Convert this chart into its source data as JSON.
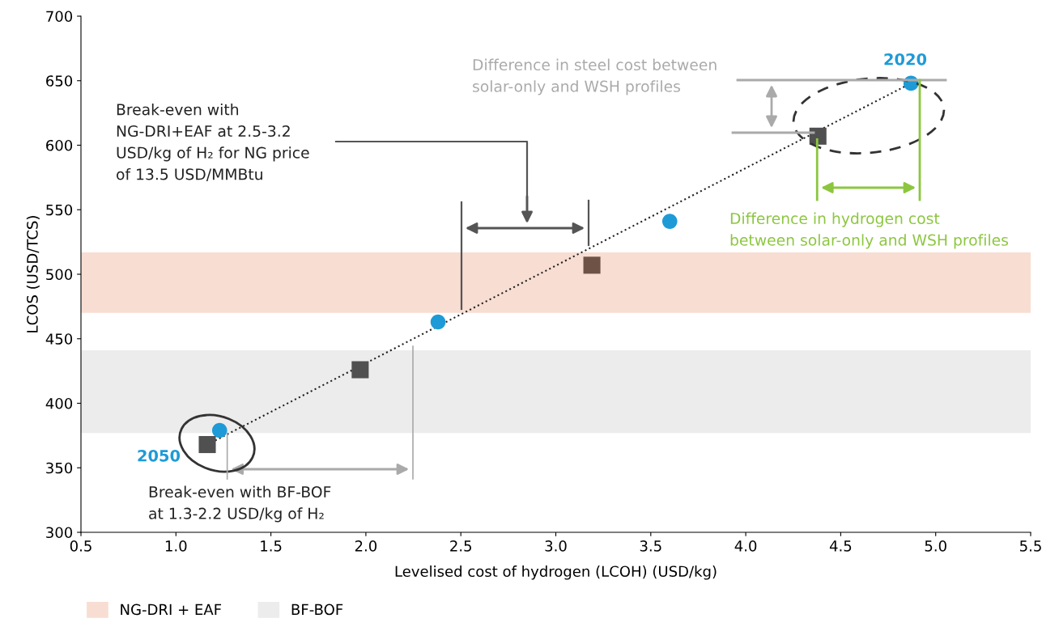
{
  "chart_data": {
    "type": "scatter",
    "xlabel": "Levelised cost of hydrogen (LCOH) (USD/kg)",
    "ylabel": "LCOS (USD/TCS)",
    "xlim": [
      0.5,
      5.5
    ],
    "xticks": [
      {
        "value": 0.5,
        "label": "0.5"
      },
      {
        "value": 1.0,
        "label": "1.0"
      },
      {
        "value": 1.5,
        "label": "1.5"
      },
      {
        "value": 2.0,
        "label": "2.0"
      },
      {
        "value": 2.5,
        "label": "2.5"
      },
      {
        "value": 3.0,
        "label": "3.0"
      },
      {
        "value": 3.5,
        "label": "3.5"
      },
      {
        "value": 4.0,
        "label": "4.0"
      },
      {
        "value": 4.5,
        "label": "4.5"
      },
      {
        "value": 5.0,
        "label": "5.0"
      },
      {
        "value": 5.5,
        "label": "5.5"
      }
    ],
    "ylim": [
      300,
      700
    ],
    "yticks": [
      300,
      350,
      400,
      450,
      500,
      550,
      600,
      650,
      700
    ],
    "grid": false,
    "legend": "bottom left",
    "series": [
      {
        "type": "line",
        "color": "#222222",
        "line_style": "dotted",
        "marker": "none",
        "x": [
          1.165,
          4.87
        ],
        "values": [
          368,
          648
        ]
      },
      {
        "color": "#1e9bd7",
        "marker": "circle",
        "x": [
          1.23,
          2.38,
          3.6,
          4.87
        ],
        "values": [
          379,
          463,
          541,
          648
        ]
      },
      {
        "color": "#505050",
        "marker": "square",
        "colors": [
          "#505050",
          "#505050",
          "#6e5246",
          "#505050"
        ],
        "x": [
          1.165,
          1.97,
          3.19,
          4.38
        ],
        "values": [
          368,
          426,
          507,
          607
        ]
      }
    ],
    "bands": [
      {
        "axis": "y",
        "from": 470,
        "to": 517,
        "label": "NG-DRI + EAF",
        "color": "#f8ddd3"
      },
      {
        "axis": "y",
        "from": 377,
        "to": 441,
        "label": "BF-BOF",
        "color": "#ececec"
      }
    ],
    "annotations": [
      "2020",
      "2050",
      "Difference in steel cost between\nsolar-only and WSH profiles",
      "Break-even with\nNG-DRI+EAF at 2.5-3.2\nUSD/kg of H₂ for NG price\nof 13.5 USD/MMBtu",
      {
        "text": "Difference in hydrogen cost\nbetween solar-only and WSH profiles",
        "x": 4.38,
        "y": 607
      },
      {
        "text": "Break-even with BF-BOF\nat 1.3-2.2 USD/kg of H₂",
        "x": 1.27,
        "y": 376
      }
    ]
  }
}
